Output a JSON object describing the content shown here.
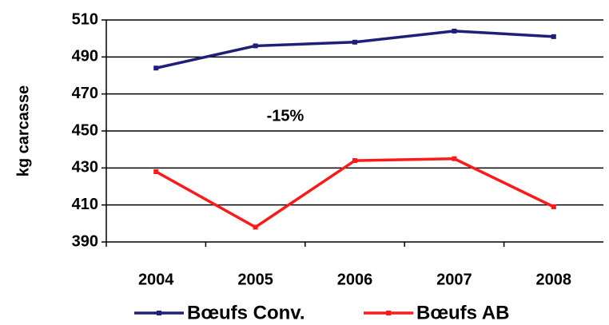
{
  "chart_data": {
    "type": "line",
    "ylabel": "kg carcasse",
    "annotation": "-15%",
    "categories": [
      "2004",
      "2005",
      "2006",
      "2007",
      "2008"
    ],
    "series": [
      {
        "name": "Bœufs Conv.",
        "color": "#1f1f7a",
        "values": [
          484,
          496,
          498,
          504,
          501
        ]
      },
      {
        "name": "Bœufs AB",
        "color": "#ff1a1a",
        "values": [
          428,
          398,
          434,
          435,
          409
        ]
      }
    ],
    "ylim": [
      390,
      510
    ],
    "yticks": [
      390,
      410,
      430,
      450,
      470,
      490,
      510
    ],
    "grid": true,
    "legend": "bottom"
  }
}
